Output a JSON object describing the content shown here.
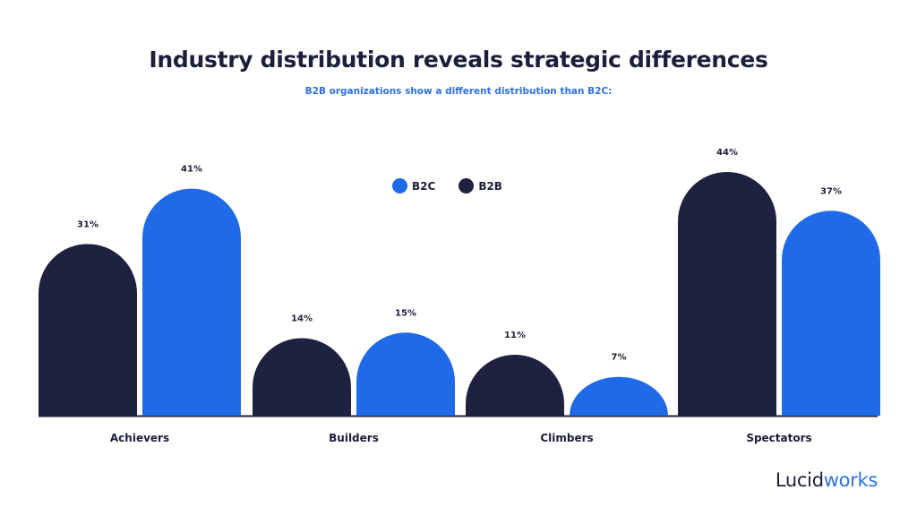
{
  "title": "Industry distribution reveals strategic differences",
  "subtitle": "B2B organizations show a different distribution than B2C:",
  "logo": {
    "part1": "Lucid",
    "part2": "works"
  },
  "colors": {
    "B2B": "#1e2140",
    "B2C": "#1f6ae8",
    "title": "#1c1f3b",
    "accent": "#2f6fe8"
  },
  "legend": [
    {
      "label": "B2C",
      "color": "#1f6ae8"
    },
    {
      "label": "B2B",
      "color": "#1e2140"
    }
  ],
  "chart_data": {
    "type": "bar",
    "title": "Industry distribution reveals strategic differences",
    "subtitle": "B2B organizations show a different distribution than B2C:",
    "categories": [
      "Achievers",
      "Builders",
      "Climbers",
      "Spectators"
    ],
    "series": [
      {
        "name": "B2B",
        "values": [
          31,
          14,
          11,
          44
        ],
        "labels": [
          "31%",
          "14%",
          "11%",
          "44%"
        ],
        "color": "#1e2140"
      },
      {
        "name": "B2C",
        "values": [
          41,
          15,
          7,
          37
        ],
        "labels": [
          "41%",
          "15%",
          "7%",
          "37%"
        ],
        "color": "#1f6ae8"
      }
    ],
    "order_per_category": [
      [
        "B2B",
        "B2C"
      ],
      [
        "B2B",
        "B2C"
      ],
      [
        "B2B",
        "B2C"
      ],
      [
        "B2B",
        "B2C"
      ]
    ],
    "unit": "%",
    "ylim": [
      0,
      44
    ],
    "grid": false,
    "legend_position": "top-center"
  }
}
